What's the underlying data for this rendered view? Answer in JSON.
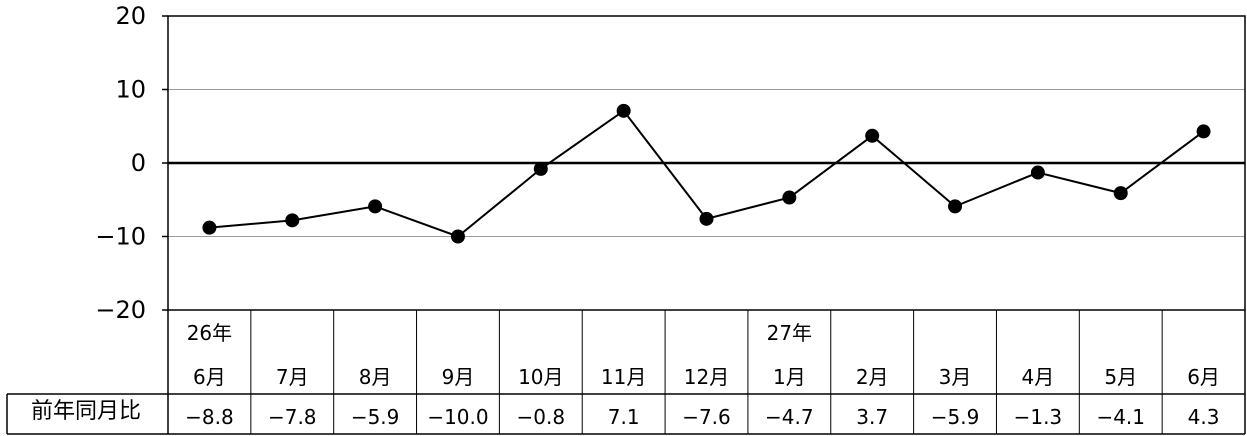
{
  "chart_data": {
    "type": "line",
    "categories": [
      {
        "year": "26年",
        "month": "6月"
      },
      {
        "year": "",
        "month": "7月"
      },
      {
        "year": "",
        "month": "8月"
      },
      {
        "year": "",
        "month": "9月"
      },
      {
        "year": "",
        "month": "10月"
      },
      {
        "year": "",
        "month": "11月"
      },
      {
        "year": "",
        "month": "12月"
      },
      {
        "year": "27年",
        "month": "1月"
      },
      {
        "year": "",
        "month": "2月"
      },
      {
        "year": "",
        "month": "3月"
      },
      {
        "year": "",
        "month": "4月"
      },
      {
        "year": "",
        "month": "5月"
      },
      {
        "year": "",
        "month": "6月"
      }
    ],
    "series": [
      {
        "name": "",
        "values": [
          -8.8,
          -7.8,
          -5.9,
          -10.0,
          -0.8,
          7.1,
          -7.6,
          -4.7,
          3.7,
          -5.9,
          -1.3,
          -4.1,
          4.3
        ],
        "value_labels": [
          "−8.8",
          "−7.8",
          "−5.9",
          "−10.0",
          "−0.8",
          "7.1",
          "−7.6",
          "−4.7",
          "3.7",
          "−5.9",
          "−1.3",
          "−4.1",
          "4.3"
        ]
      }
    ],
    "row_label": "前年同月比",
    "yticks": [
      20,
      10,
      0,
      -10,
      -20
    ],
    "ytick_labels": [
      "20",
      "10",
      "0",
      "−10",
      "−20"
    ],
    "ylim": [
      -20,
      20
    ],
    "grid": true,
    "line_color": "#000000",
    "marker_color": "#000000"
  }
}
